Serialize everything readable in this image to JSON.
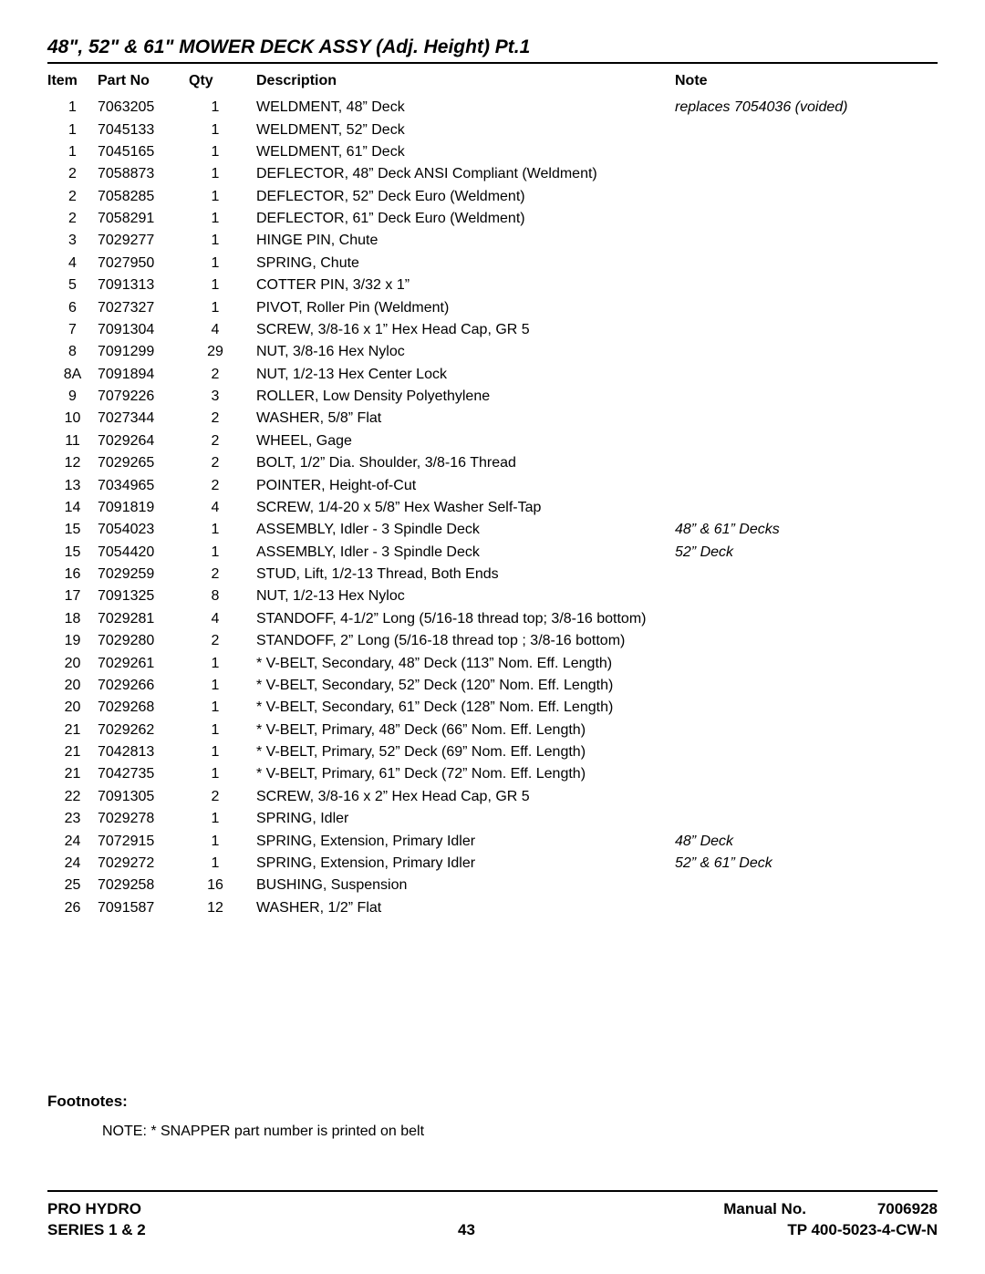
{
  "title": "48\", 52\" & 61\" MOWER DECK ASSY (Adj. Height) Pt.1",
  "columns": {
    "item": "Item",
    "part": "Part No",
    "qty": "Qty",
    "desc": "Description",
    "note": "Note"
  },
  "rows": [
    {
      "item": "1",
      "part": "7063205",
      "qty": "1",
      "desc": "WELDMENT, 48” Deck",
      "note": "replaces 7054036 (voided)"
    },
    {
      "item": "1",
      "part": "7045133",
      "qty": "1",
      "desc": "WELDMENT, 52” Deck",
      "note": ""
    },
    {
      "item": "1",
      "part": "7045165",
      "qty": "1",
      "desc": "WELDMENT, 61” Deck",
      "note": ""
    },
    {
      "item": "2",
      "part": "7058873",
      "qty": "1",
      "desc": "DEFLECTOR, 48” Deck ANSI Compliant (Weldment)",
      "note": ""
    },
    {
      "item": "2",
      "part": "7058285",
      "qty": "1",
      "desc": "DEFLECTOR, 52” Deck Euro (Weldment)",
      "note": ""
    },
    {
      "item": "2",
      "part": "7058291",
      "qty": "1",
      "desc": "DEFLECTOR, 61” Deck Euro (Weldment)",
      "note": ""
    },
    {
      "item": "3",
      "part": "7029277",
      "qty": "1",
      "desc": "HINGE PIN, Chute",
      "note": ""
    },
    {
      "item": "4",
      "part": "7027950",
      "qty": "1",
      "desc": "SPRING, Chute",
      "note": ""
    },
    {
      "item": "5",
      "part": "7091313",
      "qty": "1",
      "desc": "COTTER PIN, 3/32 x 1”",
      "note": ""
    },
    {
      "item": "6",
      "part": "7027327",
      "qty": "1",
      "desc": "PIVOT, Roller Pin (Weldment)",
      "note": ""
    },
    {
      "item": "7",
      "part": "7091304",
      "qty": "4",
      "desc": "SCREW, 3/8-16 x 1” Hex Head Cap, GR 5",
      "note": ""
    },
    {
      "item": "8",
      "part": "7091299",
      "qty": "29",
      "desc": "NUT, 3/8-16 Hex Nyloc",
      "note": ""
    },
    {
      "item": "8A",
      "part": "7091894",
      "qty": "2",
      "desc": "NUT, 1/2-13 Hex Center Lock",
      "note": ""
    },
    {
      "item": "9",
      "part": "7079226",
      "qty": "3",
      "desc": "ROLLER, Low Density Polyethylene",
      "note": ""
    },
    {
      "item": "10",
      "part": "7027344",
      "qty": "2",
      "desc": "WASHER, 5/8” Flat",
      "note": ""
    },
    {
      "item": "11",
      "part": "7029264",
      "qty": "2",
      "desc": "WHEEL, Gage",
      "note": ""
    },
    {
      "item": "12",
      "part": "7029265",
      "qty": "2",
      "desc": "BOLT, 1/2” Dia. Shoulder, 3/8-16 Thread",
      "note": ""
    },
    {
      "item": "13",
      "part": "7034965",
      "qty": "2",
      "desc": "POINTER, Height-of-Cut",
      "note": ""
    },
    {
      "item": "14",
      "part": "7091819",
      "qty": "4",
      "desc": "SCREW, 1/4-20 x 5/8” Hex Washer Self-Tap",
      "note": ""
    },
    {
      "item": "15",
      "part": "7054023",
      "qty": "1",
      "desc": "ASSEMBLY, Idler - 3 Spindle Deck",
      "note": "48” & 61” Decks"
    },
    {
      "item": "15",
      "part": "7054420",
      "qty": "1",
      "desc": "ASSEMBLY, Idler - 3 Spindle Deck",
      "note": "52” Deck"
    },
    {
      "item": "16",
      "part": "7029259",
      "qty": "2",
      "desc": "STUD, Lift, 1/2-13 Thread, Both Ends",
      "note": ""
    },
    {
      "item": "17",
      "part": "7091325",
      "qty": "8",
      "desc": "NUT, 1/2-13 Hex Nyloc",
      "note": ""
    },
    {
      "item": "18",
      "part": "7029281",
      "qty": "4",
      "desc": "STANDOFF, 4-1/2” Long (5/16-18 thread top; 3/8-16 bottom)",
      "note": ""
    },
    {
      "item": "19",
      "part": "7029280",
      "qty": "2",
      "desc": "STANDOFF, 2” Long (5/16-18 thread top ; 3/8-16 bottom)",
      "note": ""
    },
    {
      "item": "20",
      "part": "7029261",
      "qty": "1",
      "desc": "* V-BELT, Secondary, 48” Deck (113” Nom. Eff. Length)",
      "note": ""
    },
    {
      "item": "20",
      "part": "7029266",
      "qty": "1",
      "desc": "* V-BELT, Secondary, 52” Deck (120” Nom. Eff. Length)",
      "note": ""
    },
    {
      "item": "20",
      "part": "7029268",
      "qty": "1",
      "desc": "* V-BELT, Secondary, 61” Deck (128” Nom. Eff. Length)",
      "note": ""
    },
    {
      "item": "21",
      "part": "7029262",
      "qty": "1",
      "desc": "* V-BELT, Primary, 48” Deck (66” Nom. Eff. Length)",
      "note": ""
    },
    {
      "item": "21",
      "part": "7042813",
      "qty": "1",
      "desc": "* V-BELT, Primary, 52” Deck (69” Nom. Eff. Length)",
      "note": ""
    },
    {
      "item": "21",
      "part": "7042735",
      "qty": "1",
      "desc": "* V-BELT, Primary, 61” Deck (72” Nom. Eff. Length)",
      "note": ""
    },
    {
      "item": "22",
      "part": "7091305",
      "qty": "2",
      "desc": "SCREW, 3/8-16 x 2” Hex Head Cap,  GR 5",
      "note": ""
    },
    {
      "item": "23",
      "part": "7029278",
      "qty": "1",
      "desc": "SPRING, Idler",
      "note": ""
    },
    {
      "item": "24",
      "part": "7072915",
      "qty": "1",
      "desc": "SPRING, Extension, Primary Idler",
      "note": "48” Deck"
    },
    {
      "item": "24",
      "part": "7029272",
      "qty": "1",
      "desc": "SPRING, Extension, Primary Idler",
      "note": "52” & 61” Deck"
    },
    {
      "item": "25",
      "part": "7029258",
      "qty": "16",
      "desc": "BUSHING, Suspension",
      "note": ""
    },
    {
      "item": "26",
      "part": "7091587",
      "qty": "12",
      "desc": "WASHER, 1/2” Flat",
      "note": ""
    }
  ],
  "footnotes": {
    "label": "Footnotes:",
    "text": "NOTE: * SNAPPER part number is printed on belt"
  },
  "footer": {
    "left1": "PRO HYDRO",
    "left2": "SERIES 1 & 2",
    "page": "43",
    "manual_label": "Manual No.",
    "manual_no": "7006928",
    "doc_no": "TP 400-5023-4-CW-N"
  },
  "colors": {
    "text": "#000000",
    "background": "#ffffff",
    "rule": "#000000"
  }
}
